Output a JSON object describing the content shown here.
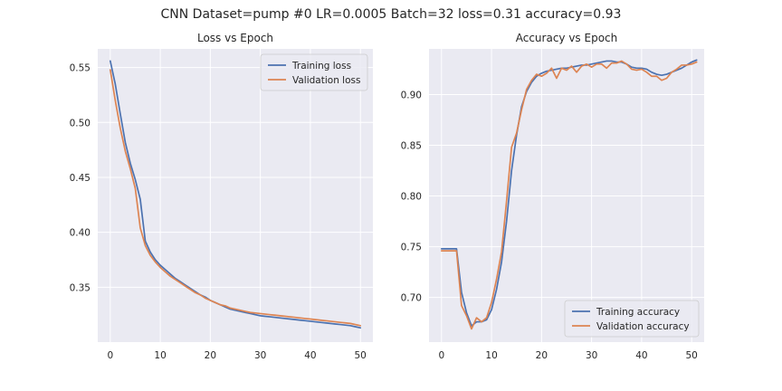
{
  "suptitle": "CNN Dataset=pump #0 LR=0.0005 Batch=32 loss=0.31 accuracy=0.93",
  "colors": {
    "blue": "#4c72b0",
    "orange": "#dd8452",
    "axes_bg": "#eaeaf2",
    "grid": "#ffffff"
  },
  "chart_data": [
    {
      "type": "line",
      "title": "Loss vs Epoch",
      "xlabel": "",
      "ylabel": "",
      "xlim": [
        -2.5,
        52.5
      ],
      "ylim": [
        0.3,
        0.567
      ],
      "xticks": [
        0,
        10,
        20,
        30,
        40,
        50
      ],
      "yticks": [
        0.35,
        0.4,
        0.45,
        0.5,
        0.55
      ],
      "ytick_labels": [
        "0.35",
        "0.40",
        "0.45",
        "0.50",
        "0.55"
      ],
      "grid": true,
      "legend_position": "upper-right",
      "series": [
        {
          "name": "Training loss",
          "color": "#4c72b0",
          "x": [
            0,
            1,
            2,
            3,
            4,
            5,
            6,
            7,
            8,
            9,
            10,
            11,
            12,
            13,
            14,
            15,
            16,
            17,
            18,
            19,
            20,
            21,
            22,
            23,
            24,
            25,
            26,
            27,
            28,
            29,
            30,
            31,
            32,
            33,
            34,
            35,
            36,
            37,
            38,
            39,
            40,
            41,
            42,
            43,
            44,
            45,
            46,
            47,
            48,
            49,
            50
          ],
          "values": [
            0.556,
            0.535,
            0.508,
            0.482,
            0.463,
            0.448,
            0.43,
            0.392,
            0.382,
            0.375,
            0.37,
            0.366,
            0.362,
            0.358,
            0.355,
            0.352,
            0.349,
            0.346,
            0.343,
            0.341,
            0.338,
            0.336,
            0.334,
            0.332,
            0.33,
            0.329,
            0.328,
            0.327,
            0.326,
            0.325,
            0.324,
            0.3235,
            0.323,
            0.3225,
            0.322,
            0.3215,
            0.321,
            0.3205,
            0.32,
            0.3195,
            0.319,
            0.3185,
            0.318,
            0.3175,
            0.317,
            0.3165,
            0.316,
            0.3155,
            0.315,
            0.314,
            0.313
          ]
        },
        {
          "name": "Validation loss",
          "color": "#dd8452",
          "x": [
            0,
            1,
            2,
            3,
            4,
            5,
            6,
            7,
            8,
            9,
            10,
            11,
            12,
            13,
            14,
            15,
            16,
            17,
            18,
            19,
            20,
            21,
            22,
            23,
            24,
            25,
            26,
            27,
            28,
            29,
            30,
            31,
            32,
            33,
            34,
            35,
            36,
            37,
            38,
            39,
            40,
            41,
            42,
            43,
            44,
            45,
            46,
            47,
            48,
            49,
            50
          ],
          "values": [
            0.548,
            0.52,
            0.495,
            0.474,
            0.458,
            0.44,
            0.404,
            0.388,
            0.379,
            0.373,
            0.368,
            0.364,
            0.36,
            0.357,
            0.354,
            0.351,
            0.348,
            0.345,
            0.343,
            0.34,
            0.338,
            0.336,
            0.334,
            0.333,
            0.331,
            0.33,
            0.329,
            0.328,
            0.327,
            0.3265,
            0.326,
            0.3255,
            0.325,
            0.3245,
            0.324,
            0.3235,
            0.323,
            0.3225,
            0.322,
            0.3215,
            0.321,
            0.3205,
            0.32,
            0.3195,
            0.319,
            0.3185,
            0.318,
            0.3175,
            0.317,
            0.316,
            0.315
          ]
        }
      ]
    },
    {
      "type": "line",
      "title": "Accuracy vs Epoch",
      "xlabel": "",
      "ylabel": "",
      "xlim": [
        -2.5,
        52.5
      ],
      "ylim": [
        0.656,
        0.945
      ],
      "xticks": [
        0,
        10,
        20,
        30,
        40,
        50
      ],
      "yticks": [
        0.7,
        0.75,
        0.8,
        0.85,
        0.9
      ],
      "ytick_labels": [
        "0.70",
        "0.75",
        "0.80",
        "0.85",
        "0.90"
      ],
      "grid": true,
      "legend_position": "lower-right",
      "series": [
        {
          "name": "Training accuracy",
          "color": "#4c72b0",
          "x": [
            0,
            1,
            2,
            3,
            4,
            5,
            6,
            7,
            8,
            9,
            10,
            11,
            12,
            13,
            14,
            15,
            16,
            17,
            18,
            19,
            20,
            21,
            22,
            23,
            24,
            25,
            26,
            27,
            28,
            29,
            30,
            31,
            32,
            33,
            34,
            35,
            36,
            37,
            38,
            39,
            40,
            41,
            42,
            43,
            44,
            45,
            46,
            47,
            48,
            49,
            50,
            51
          ],
          "values": [
            0.748,
            0.748,
            0.748,
            0.748,
            0.705,
            0.685,
            0.672,
            0.676,
            0.676,
            0.678,
            0.688,
            0.708,
            0.735,
            0.775,
            0.825,
            0.86,
            0.888,
            0.903,
            0.912,
            0.918,
            0.921,
            0.923,
            0.924,
            0.925,
            0.926,
            0.926,
            0.927,
            0.928,
            0.929,
            0.929,
            0.93,
            0.931,
            0.932,
            0.933,
            0.933,
            0.932,
            0.932,
            0.93,
            0.927,
            0.926,
            0.926,
            0.925,
            0.922,
            0.92,
            0.919,
            0.92,
            0.922,
            0.924,
            0.926,
            0.929,
            0.932,
            0.934
          ]
        },
        {
          "name": "Validation accuracy",
          "color": "#dd8452",
          "x": [
            0,
            1,
            2,
            3,
            4,
            5,
            6,
            7,
            8,
            9,
            10,
            11,
            12,
            13,
            14,
            15,
            16,
            17,
            18,
            19,
            20,
            21,
            22,
            23,
            24,
            25,
            26,
            27,
            28,
            29,
            30,
            31,
            32,
            33,
            34,
            35,
            36,
            37,
            38,
            39,
            40,
            41,
            42,
            43,
            44,
            45,
            46,
            47,
            48,
            49,
            50,
            51
          ],
          "values": [
            0.746,
            0.746,
            0.746,
            0.746,
            0.692,
            0.682,
            0.669,
            0.68,
            0.676,
            0.68,
            0.695,
            0.718,
            0.745,
            0.795,
            0.848,
            0.862,
            0.885,
            0.905,
            0.914,
            0.92,
            0.918,
            0.921,
            0.926,
            0.916,
            0.926,
            0.924,
            0.928,
            0.922,
            0.928,
            0.93,
            0.927,
            0.93,
            0.93,
            0.926,
            0.931,
            0.931,
            0.933,
            0.93,
            0.925,
            0.924,
            0.925,
            0.922,
            0.918,
            0.918,
            0.914,
            0.916,
            0.922,
            0.925,
            0.929,
            0.929,
            0.93,
            0.932
          ]
        }
      ]
    }
  ]
}
